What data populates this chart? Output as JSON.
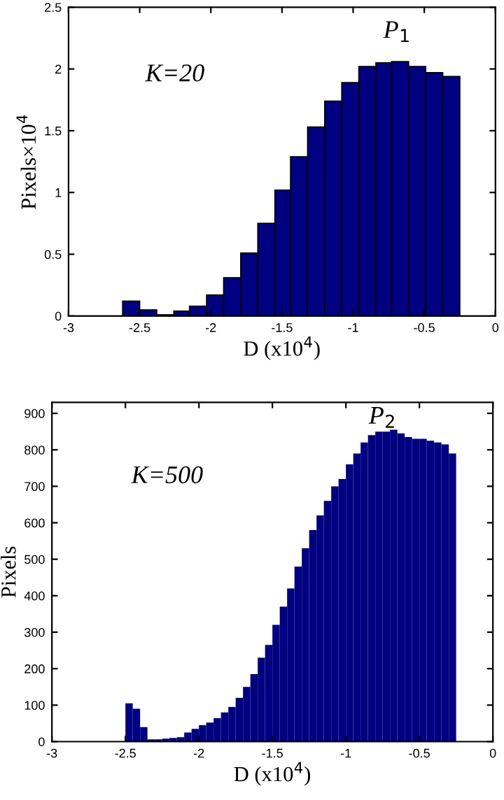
{
  "chart_data": [
    {
      "type": "histogram",
      "xlabel": "D (x10$^{4}$)",
      "ylabel": "Pixels×10$^{4}$",
      "color": "#000080",
      "bins": [
        -2.62,
        -2.5,
        -2.38,
        -2.26,
        -2.15,
        -2.03,
        -1.91,
        -1.79,
        -1.67,
        -1.55,
        -1.44,
        -1.32,
        -1.2,
        -1.08,
        -0.96,
        -0.84,
        -0.73,
        -0.61,
        -0.49,
        -0.37,
        -0.25
      ],
      "values": [
        0.12,
        0.05,
        0.01,
        0.04,
        0.08,
        0.17,
        0.31,
        0.51,
        0.75,
        1.02,
        1.29,
        1.53,
        1.74,
        1.89,
        2.02,
        2.05,
        2.06,
        2.02,
        1.97,
        1.94
      ],
      "xlim": [
        -3,
        0
      ],
      "xticks": [
        -3,
        -2.5,
        -2,
        -1.5,
        -1,
        -0.5,
        0
      ],
      "ylim": [
        0,
        2.5
      ],
      "yticks": [
        0,
        0.5,
        1,
        1.5,
        2,
        2.5
      ],
      "annotations": [
        "K=20",
        "P$_{1}$"
      ]
    },
    {
      "type": "histogram",
      "xlabel": "D (x10$^{4}$)",
      "ylabel": "Pixels",
      "color": "#000080",
      "bins": [
        -2.5,
        -2.45,
        -2.4,
        -2.35,
        -2.3,
        -2.25,
        -2.2,
        -2.15,
        -2.1,
        -2.05,
        -2.0,
        -1.95,
        -1.9,
        -1.85,
        -1.8,
        -1.75,
        -1.7,
        -1.65,
        -1.6,
        -1.55,
        -1.5,
        -1.45,
        -1.4,
        -1.35,
        -1.3,
        -1.25,
        -1.2,
        -1.15,
        -1.1,
        -1.05,
        -1.0,
        -0.95,
        -0.9,
        -0.85,
        -0.8,
        -0.75,
        -0.7,
        -0.65,
        -0.6,
        -0.55,
        -0.5,
        -0.45,
        -0.4,
        -0.35,
        -0.3,
        -0.25
      ],
      "values": [
        105,
        90,
        40,
        6,
        6,
        8,
        10,
        12,
        25,
        35,
        45,
        52,
        64,
        80,
        95,
        120,
        150,
        185,
        230,
        265,
        320,
        370,
        420,
        480,
        530,
        580,
        620,
        660,
        700,
        720,
        760,
        790,
        820,
        840,
        850,
        850,
        855,
        845,
        835,
        830,
        830,
        825,
        820,
        815,
        790
      ],
      "xlim": [
        -3,
        0
      ],
      "xticks": [
        -3,
        -2.5,
        -2,
        -1.5,
        -1,
        -0.5,
        0
      ],
      "ylim": [
        0,
        930
      ],
      "yticks": [
        0,
        100,
        200,
        300,
        400,
        500,
        600,
        700,
        800,
        900
      ],
      "annotations": [
        "K=500",
        "P$_{2}$"
      ]
    }
  ]
}
